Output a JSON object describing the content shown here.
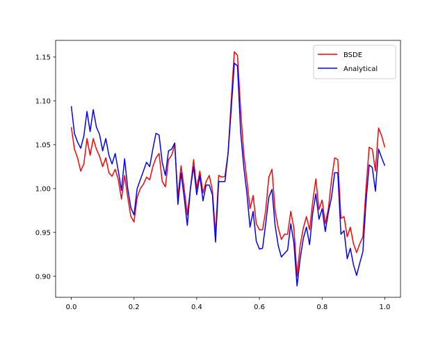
{
  "chart_data": {
    "type": "line",
    "x": [
      0,
      0.01,
      0.02,
      0.03,
      0.04,
      0.05,
      0.06,
      0.07,
      0.08,
      0.09,
      0.1,
      0.11,
      0.12,
      0.13,
      0.14,
      0.15,
      0.16,
      0.17,
      0.18,
      0.19,
      0.2,
      0.21,
      0.22,
      0.23,
      0.24,
      0.25,
      0.26,
      0.27,
      0.28,
      0.29,
      0.3,
      0.31,
      0.32,
      0.33,
      0.34,
      0.35,
      0.36,
      0.37,
      0.38,
      0.39,
      0.4,
      0.41,
      0.42,
      0.43,
      0.44,
      0.45,
      0.46,
      0.47,
      0.48,
      0.49,
      0.5,
      0.51,
      0.52,
      0.53,
      0.54,
      0.55,
      0.56,
      0.57,
      0.58,
      0.59,
      0.6,
      0.61,
      0.62,
      0.63,
      0.64,
      0.65,
      0.66,
      0.67,
      0.68,
      0.69,
      0.7,
      0.71,
      0.72,
      0.73,
      0.74,
      0.75,
      0.76,
      0.77,
      0.78,
      0.79,
      0.8,
      0.81,
      0.82,
      0.83,
      0.84,
      0.85,
      0.86,
      0.87,
      0.88,
      0.89,
      0.9,
      0.91,
      0.92,
      0.93,
      0.94,
      0.95,
      0.96,
      0.97,
      0.98,
      0.99,
      1
    ],
    "series": [
      {
        "name": "BSDE",
        "color": "#ff0000",
        "values": [
          1.07,
          1.045,
          1.035,
          1.02,
          1.028,
          1.057,
          1.038,
          1.057,
          1.045,
          1.037,
          1.025,
          1.035,
          1.018,
          1.014,
          1.022,
          1.01,
          0.988,
          1.015,
          0.99,
          0.968,
          0.962,
          0.99,
          1.0,
          1.005,
          1.013,
          1.01,
          1.025,
          1.035,
          1.04,
          1.008,
          1.002,
          1.033,
          1.038,
          1.05,
          0.99,
          1.026,
          1.0,
          0.97,
          1.0,
          1.033,
          1.0,
          1.02,
          0.995,
          1.008,
          1.015,
          0.998,
          0.948,
          1.015,
          1.013,
          1.014,
          1.04,
          1.1,
          1.156,
          1.152,
          1.09,
          1.04,
          1.01,
          0.977,
          0.992,
          0.96,
          0.953,
          0.953,
          0.975,
          1.013,
          1.022,
          0.975,
          0.955,
          0.942,
          0.948,
          0.948,
          0.974,
          0.955,
          0.9,
          0.935,
          0.955,
          0.968,
          0.953,
          0.985,
          1.011,
          0.976,
          0.987,
          0.96,
          0.977,
          1.01,
          1.035,
          1.033,
          0.966,
          0.968,
          0.945,
          0.956,
          0.937,
          0.927,
          0.937,
          0.945,
          1.0,
          1.047,
          1.045,
          1.02,
          1.069,
          1.06,
          1.047
        ]
      },
      {
        "name": "Analytical",
        "color": "#0000ff",
        "values": [
          1.094,
          1.063,
          1.053,
          1.046,
          1.06,
          1.088,
          1.065,
          1.09,
          1.07,
          1.062,
          1.043,
          1.057,
          1.038,
          1.028,
          1.04,
          1.02,
          0.998,
          1.034,
          1.0,
          0.978,
          0.97,
          1.0,
          1.01,
          1.02,
          1.03,
          1.025,
          1.045,
          1.063,
          1.061,
          1.03,
          1.015,
          1.043,
          1.045,
          1.052,
          0.982,
          1.018,
          0.99,
          0.958,
          1.0,
          1.025,
          0.993,
          1.015,
          0.986,
          1.004,
          1.004,
          0.993,
          0.939,
          1.008,
          1.008,
          1.008,
          1.04,
          1.09,
          1.143,
          1.14,
          1.065,
          1.025,
          0.995,
          0.956,
          0.974,
          0.94,
          0.931,
          0.932,
          0.96,
          0.99,
          0.999,
          0.958,
          0.935,
          0.922,
          0.926,
          0.93,
          0.96,
          0.938,
          0.889,
          0.92,
          0.943,
          0.956,
          0.936,
          0.972,
          0.994,
          0.965,
          0.977,
          0.951,
          0.973,
          0.99,
          1.018,
          1.018,
          0.948,
          0.952,
          0.92,
          0.932,
          0.913,
          0.901,
          0.915,
          0.928,
          0.985,
          1.027,
          1.024,
          0.997,
          1.045,
          1.035,
          1.026
        ]
      }
    ],
    "xlim": [
      -0.05,
      1.05
    ],
    "ylim": [
      0.876,
      1.169
    ],
    "xticks": [
      {
        "value": 0,
        "label": "0.0"
      },
      0.2,
      0.4,
      0.6,
      0.8,
      {
        "value": 1,
        "label": "1.0"
      }
    ],
    "yticks": [
      {
        "value": 0.9,
        "label": "0.90"
      },
      0.95,
      {
        "value": 1,
        "label": "1.00"
      },
      1.05,
      {
        "value": 1.1,
        "label": "1.10"
      },
      1.15
    ],
    "legend": "upper right"
  }
}
